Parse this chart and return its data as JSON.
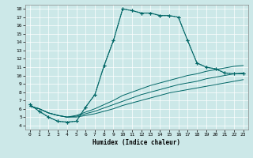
{
  "xlabel": "Humidex (Indice chaleur)",
  "bg_color": "#cce8e8",
  "line_color": "#006666",
  "xlim": [
    -0.5,
    23.5
  ],
  "ylim": [
    3.5,
    18.5
  ],
  "curve1_x": [
    0,
    1,
    2,
    3,
    4,
    5,
    6,
    7,
    8,
    9,
    10,
    11,
    12,
    13,
    14,
    15,
    16,
    17,
    18,
    19,
    20,
    21,
    22,
    23
  ],
  "curve1_y": [
    6.5,
    5.7,
    5.0,
    4.5,
    4.4,
    4.5,
    6.2,
    7.7,
    11.2,
    14.2,
    18.0,
    17.8,
    17.5,
    17.5,
    17.2,
    17.2,
    17.0,
    14.2,
    11.5,
    11.0,
    10.8,
    10.3,
    10.2,
    10.2
  ],
  "curve2_x": [
    0,
    1,
    2,
    3,
    4,
    5,
    6,
    7,
    8,
    9,
    10,
    11,
    12,
    13,
    14,
    15,
    16,
    17,
    18,
    19,
    20,
    21,
    22,
    23
  ],
  "curve2_y": [
    6.5,
    5.7,
    5.0,
    4.5,
    4.4,
    4.5,
    6.2,
    7.7,
    11.2,
    14.2,
    18.0,
    17.8,
    17.5,
    17.5,
    17.2,
    17.2,
    17.0,
    14.2,
    11.5,
    11.0,
    10.8,
    10.3,
    10.2,
    10.2
  ],
  "lin1_x": [
    0,
    1,
    2,
    3,
    4,
    5,
    6,
    7,
    8,
    9,
    10,
    11,
    12,
    13,
    14,
    15,
    16,
    17,
    18,
    19,
    20,
    21,
    22,
    23
  ],
  "lin1_y": [
    6.3,
    6.0,
    5.5,
    5.2,
    5.0,
    5.0,
    5.2,
    5.4,
    5.7,
    6.0,
    6.4,
    6.7,
    7.0,
    7.3,
    7.6,
    7.9,
    8.1,
    8.3,
    8.5,
    8.7,
    8.9,
    9.1,
    9.3,
    9.5
  ],
  "lin2_x": [
    0,
    1,
    2,
    3,
    4,
    5,
    6,
    7,
    8,
    9,
    10,
    11,
    12,
    13,
    14,
    15,
    16,
    17,
    18,
    19,
    20,
    21,
    22,
    23
  ],
  "lin2_y": [
    6.3,
    6.0,
    5.5,
    5.2,
    5.0,
    5.1,
    5.4,
    5.7,
    6.1,
    6.5,
    6.9,
    7.3,
    7.7,
    8.0,
    8.3,
    8.6,
    8.9,
    9.1,
    9.3,
    9.6,
    9.8,
    10.0,
    10.2,
    10.3
  ],
  "lin3_x": [
    0,
    1,
    2,
    3,
    4,
    5,
    6,
    7,
    8,
    9,
    10,
    11,
    12,
    13,
    14,
    15,
    16,
    17,
    18,
    19,
    20,
    21,
    22,
    23
  ],
  "lin3_y": [
    6.3,
    6.0,
    5.5,
    5.2,
    5.0,
    5.2,
    5.6,
    6.0,
    6.5,
    7.0,
    7.6,
    8.0,
    8.4,
    8.8,
    9.1,
    9.4,
    9.7,
    10.0,
    10.2,
    10.5,
    10.7,
    10.9,
    11.1,
    11.2
  ]
}
